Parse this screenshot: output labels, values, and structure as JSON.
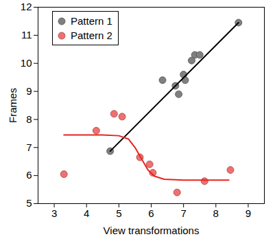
{
  "chart_data": {
    "type": "scatter",
    "x_label": "View transformations",
    "y_label": "Frames",
    "xlim": [
      2.5,
      9.5
    ],
    "ylim": [
      5,
      12
    ],
    "xticks": [
      3,
      4,
      5,
      6,
      7,
      8,
      9
    ],
    "yticks": [
      5,
      6,
      7,
      8,
      9,
      10,
      11,
      12
    ],
    "grid": false,
    "legend": "top-left",
    "series": [
      {
        "name": "Pattern 1",
        "type": "scatter",
        "marker": "circle",
        "color": "#808080",
        "x": [
          4.73,
          6.35,
          6.75,
          6.85,
          7.0,
          7.05,
          7.25,
          7.35,
          7.5,
          8.7
        ],
        "values": [
          6.87,
          9.4,
          9.2,
          8.9,
          9.6,
          9.4,
          10.1,
          10.3,
          10.3,
          11.45
        ]
      },
      {
        "name": "Pattern 2",
        "type": "scatter",
        "marker": "circle",
        "color": "#f07070",
        "x": [
          3.3,
          4.3,
          4.85,
          5.1,
          5.65,
          5.95,
          6.05,
          6.8,
          7.65,
          8.45
        ],
        "values": [
          6.05,
          7.6,
          8.2,
          8.1,
          6.65,
          6.4,
          6.1,
          5.4,
          5.8,
          6.2
        ]
      },
      {
        "type": "line",
        "line_style": "solid",
        "color": "#000000",
        "x": [
          4.73,
          8.7
        ],
        "values": [
          6.87,
          11.45
        ]
      },
      {
        "type": "line",
        "line_style": "solid",
        "color": "#e8231e",
        "x": [
          3.3,
          4.5,
          5.0,
          5.3,
          5.5,
          5.7,
          5.9,
          6.1,
          6.4,
          7.0,
          8.4
        ],
        "values": [
          7.45,
          7.45,
          7.42,
          7.3,
          7.0,
          6.6,
          6.2,
          5.98,
          5.87,
          5.84,
          5.84
        ]
      }
    ]
  }
}
